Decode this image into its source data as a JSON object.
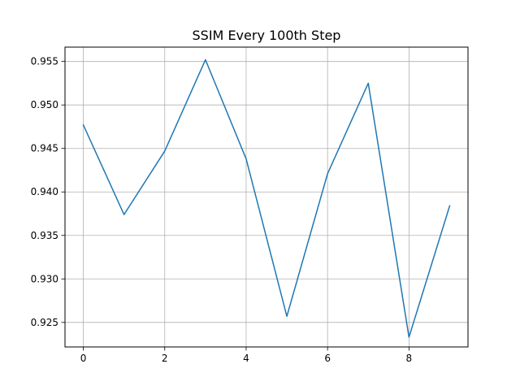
{
  "chart_data": {
    "type": "line",
    "title": "SSIM Every 100th Step",
    "xlabel": "",
    "ylabel": "",
    "x": [
      0,
      1,
      2,
      3,
      4,
      5,
      6,
      7,
      8,
      9
    ],
    "series": [
      {
        "name": "SSIM",
        "color": "#1f77b4",
        "values": [
          0.9477,
          0.9374,
          0.9447,
          0.9552,
          0.9438,
          0.9257,
          0.9421,
          0.9525,
          0.9233,
          0.9384
        ]
      }
    ],
    "xlim": [
      -0.45,
      9.45
    ],
    "ylim": [
      0.92218,
      0.95665
    ],
    "xticks": [
      0,
      2,
      4,
      6,
      8
    ],
    "xtick_labels": [
      "0",
      "2",
      "4",
      "6",
      "8"
    ],
    "yticks": [
      0.925,
      0.93,
      0.935,
      0.94,
      0.945,
      0.95,
      0.955
    ],
    "ytick_labels": [
      "0.925",
      "0.930",
      "0.935",
      "0.940",
      "0.945",
      "0.950",
      "0.955"
    ],
    "grid": true
  }
}
